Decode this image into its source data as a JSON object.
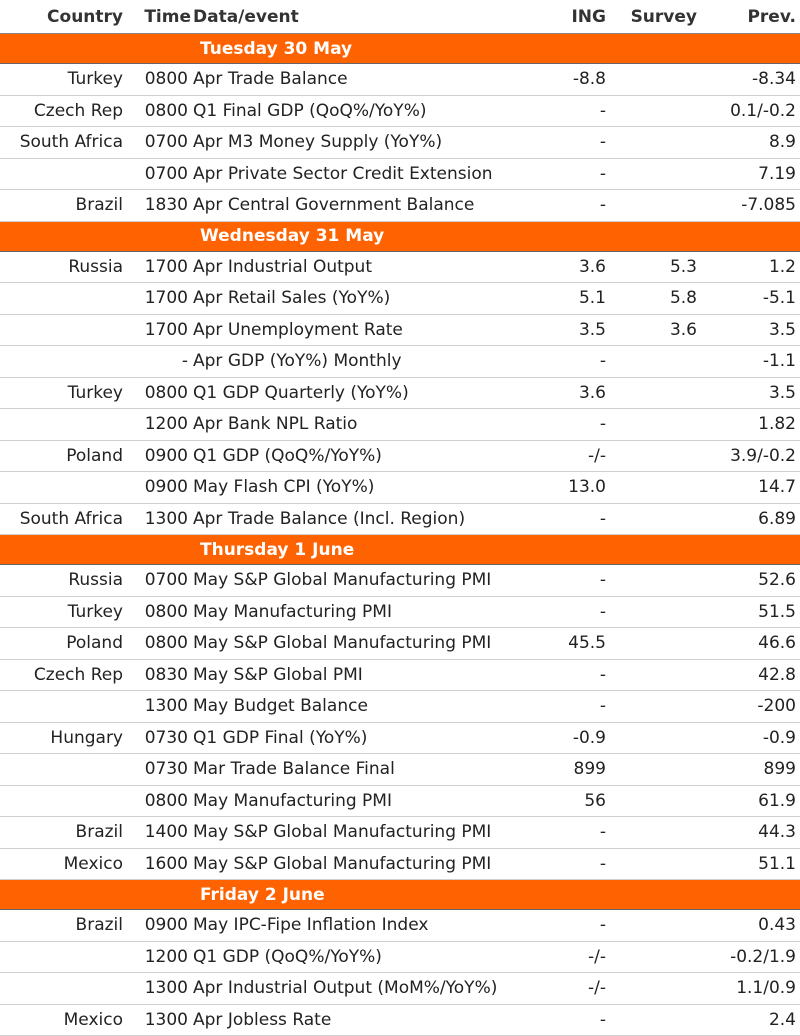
{
  "headers": {
    "country": "Country",
    "time": "Time",
    "event": "Data/event",
    "ing": "ING",
    "survey": "Survey",
    "prev": "Prev."
  },
  "days": [
    {
      "label": "Tuesday 30 May",
      "rows": [
        {
          "country": "Turkey",
          "time": "0800",
          "event": "Apr Trade Balance",
          "ing": "-8.8",
          "survey": "",
          "prev": "-8.34"
        },
        {
          "country": "Czech Rep",
          "time": "0800",
          "event": "Q1 Final GDP (QoQ%/YoY%)",
          "ing": "-",
          "survey": "",
          "prev": "0.1/-0.2"
        },
        {
          "country": "South Africa",
          "time": "0700",
          "event": "Apr M3 Money Supply (YoY%)",
          "ing": "-",
          "survey": "",
          "prev": "8.9"
        },
        {
          "country": "",
          "time": "0700",
          "event": "Apr Private Sector Credit Extension",
          "ing": "-",
          "survey": "",
          "prev": "7.19"
        },
        {
          "country": "Brazil",
          "time": "1830",
          "event": "Apr Central Government Balance",
          "ing": "-",
          "survey": "",
          "prev": "-7.085"
        }
      ]
    },
    {
      "label": "Wednesday 31 May",
      "rows": [
        {
          "country": "Russia",
          "time": "1700",
          "event": "Apr Industrial Output",
          "ing": "3.6",
          "survey": "5.3",
          "prev": "1.2"
        },
        {
          "country": "",
          "time": "1700",
          "event": "Apr Retail Sales (YoY%)",
          "ing": "5.1",
          "survey": "5.8",
          "prev": "-5.1"
        },
        {
          "country": "",
          "time": "1700",
          "event": "Apr Unemployment Rate",
          "ing": "3.5",
          "survey": "3.6",
          "prev": "3.5"
        },
        {
          "country": "",
          "time": "-",
          "event": "Apr GDP (YoY%) Monthly",
          "ing": "-",
          "survey": "",
          "prev": "-1.1"
        },
        {
          "country": "Turkey",
          "time": "0800",
          "event": "Q1 GDP Quarterly (YoY%)",
          "ing": "3.6",
          "survey": "",
          "prev": "3.5"
        },
        {
          "country": "",
          "time": "1200",
          "event": "Apr Bank NPL Ratio",
          "ing": "-",
          "survey": "",
          "prev": "1.82"
        },
        {
          "country": "Poland",
          "time": "0900",
          "event": "Q1 GDP (QoQ%/YoY%)",
          "ing": "-/-",
          "survey": "",
          "prev": "3.9/-0.2"
        },
        {
          "country": "",
          "time": "0900",
          "event": "May Flash CPI (YoY%)",
          "ing": "13.0",
          "survey": "",
          "prev": "14.7"
        },
        {
          "country": "South Africa",
          "time": "1300",
          "event": "Apr Trade Balance (Incl. Region)",
          "ing": "-",
          "survey": "",
          "prev": "6.89"
        }
      ]
    },
    {
      "label": "Thursday 1 June",
      "rows": [
        {
          "country": "Russia",
          "time": "0700",
          "event": "May S&P Global Manufacturing PMI",
          "ing": "-",
          "survey": "",
          "prev": "52.6"
        },
        {
          "country": "Turkey",
          "time": "0800",
          "event": "May Manufacturing PMI",
          "ing": "-",
          "survey": "",
          "prev": "51.5"
        },
        {
          "country": "Poland",
          "time": "0800",
          "event": "May S&P Global Manufacturing PMI",
          "ing": "45.5",
          "survey": "",
          "prev": "46.6"
        },
        {
          "country": "Czech Rep",
          "time": "0830",
          "event": "May S&P Global PMI",
          "ing": "-",
          "survey": "",
          "prev": "42.8"
        },
        {
          "country": "",
          "time": "1300",
          "event": "May Budget Balance",
          "ing": "-",
          "survey": "",
          "prev": "-200"
        },
        {
          "country": "Hungary",
          "time": "0730",
          "event": "Q1 GDP Final (YoY%)",
          "ing": "-0.9",
          "survey": "",
          "prev": "-0.9"
        },
        {
          "country": "",
          "time": "0730",
          "event": "Mar Trade Balance Final",
          "ing": "899",
          "survey": "",
          "prev": "899"
        },
        {
          "country": "",
          "time": "0800",
          "event": "May Manufacturing PMI",
          "ing": "56",
          "survey": "",
          "prev": "61.9"
        },
        {
          "country": "Brazil",
          "time": "1400",
          "event": "May S&P Global Manufacturing PMI",
          "ing": "-",
          "survey": "",
          "prev": "44.3"
        },
        {
          "country": "Mexico",
          "time": "1600",
          "event": "May S&P Global Manufacturing PMI",
          "ing": "-",
          "survey": "",
          "prev": "51.1"
        }
      ]
    },
    {
      "label": "Friday 2 June",
      "rows": [
        {
          "country": "Brazil",
          "time": "0900",
          "event": "May IPC-Fipe Inflation Index",
          "ing": "-",
          "survey": "",
          "prev": "0.43"
        },
        {
          "country": "",
          "time": "1200",
          "event": "Q1 GDP (QoQ%/YoY%)",
          "ing": "-/-",
          "survey": "",
          "prev": "-0.2/1.9"
        },
        {
          "country": "",
          "time": "1300",
          "event": "Apr Industrial Output (MoM%/YoY%)",
          "ing": "-/-",
          "survey": "",
          "prev": "1.1/0.9"
        },
        {
          "country": "Mexico",
          "time": "1300",
          "event": "Apr Jobless Rate",
          "ing": "-",
          "survey": "",
          "prev": "2.4"
        }
      ]
    }
  ]
}
